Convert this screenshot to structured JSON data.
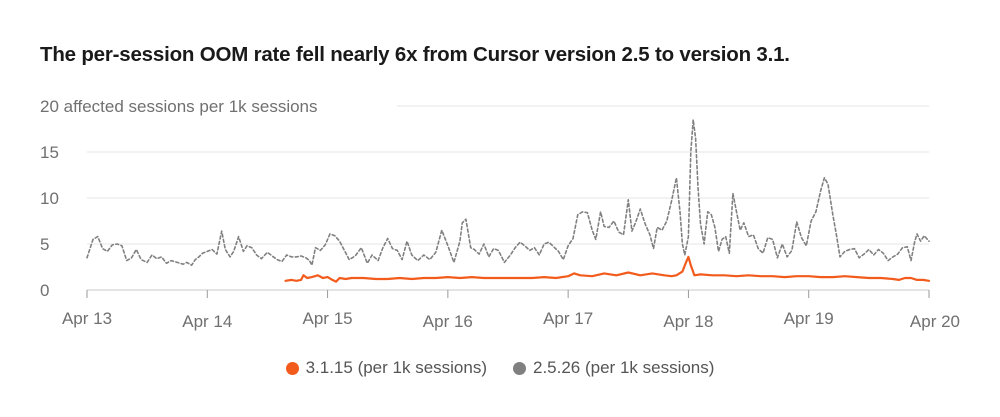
{
  "title": "The per-session OOM rate fell nearly 6x from Cursor version 2.5 to version 3.1.",
  "chart_data": {
    "type": "line",
    "title": "The per-session OOM rate fell nearly 6x from Cursor version 2.5 to version 3.1.",
    "ylabel": "affected sessions per 1k sessions",
    "ylim": [
      0,
      20
    ],
    "xlim": [
      0,
      7
    ],
    "grid": true,
    "legend_position": "bottom",
    "y_ticks": [
      {
        "value": 20,
        "label": "20 affected sessions per 1k sessions"
      },
      {
        "value": 15,
        "label": "15"
      },
      {
        "value": 10,
        "label": "10"
      },
      {
        "value": 5,
        "label": "5"
      },
      {
        "value": 0,
        "label": "0"
      }
    ],
    "x_ticks": [
      {
        "value": 0,
        "label": "Apr 13"
      },
      {
        "value": 1,
        "label": "Apr 14"
      },
      {
        "value": 2,
        "label": "Apr 15"
      },
      {
        "value": 3,
        "label": "Apr 16"
      },
      {
        "value": 4,
        "label": "Apr 17"
      },
      {
        "value": 5,
        "label": "Apr 18"
      },
      {
        "value": 6,
        "label": "Apr 19"
      },
      {
        "value": 7,
        "label": "Apr 20"
      }
    ],
    "series": [
      {
        "name": "2.5.26 (per 1k sessions)",
        "color": "#808080",
        "style": "dashed",
        "points": [
          [
            0.0,
            3.5
          ],
          [
            0.05,
            5.5
          ],
          [
            0.09,
            5.8
          ],
          [
            0.13,
            4.5
          ],
          [
            0.17,
            4.2
          ],
          [
            0.21,
            4.9
          ],
          [
            0.25,
            5.0
          ],
          [
            0.29,
            4.8
          ],
          [
            0.33,
            3.2
          ],
          [
            0.37,
            3.5
          ],
          [
            0.41,
            4.4
          ],
          [
            0.45,
            3.3
          ],
          [
            0.5,
            3.0
          ],
          [
            0.54,
            3.8
          ],
          [
            0.58,
            3.4
          ],
          [
            0.62,
            3.6
          ],
          [
            0.66,
            2.9
          ],
          [
            0.7,
            3.2
          ],
          [
            0.75,
            3.0
          ],
          [
            0.8,
            2.8
          ],
          [
            0.83,
            3.0
          ],
          [
            0.87,
            2.7
          ],
          [
            0.9,
            3.3
          ],
          [
            0.93,
            3.6
          ],
          [
            0.96,
            4.0
          ],
          [
            1.0,
            4.2
          ],
          [
            1.04,
            4.4
          ],
          [
            1.08,
            3.9
          ],
          [
            1.12,
            6.4
          ],
          [
            1.15,
            4.4
          ],
          [
            1.19,
            3.6
          ],
          [
            1.22,
            4.2
          ],
          [
            1.26,
            5.8
          ],
          [
            1.3,
            4.2
          ],
          [
            1.33,
            4.8
          ],
          [
            1.37,
            4.6
          ],
          [
            1.41,
            3.8
          ],
          [
            1.45,
            3.4
          ],
          [
            1.5,
            4.1
          ],
          [
            1.54,
            3.7
          ],
          [
            1.58,
            3.3
          ],
          [
            1.62,
            3.1
          ],
          [
            1.66,
            3.8
          ],
          [
            1.7,
            3.6
          ],
          [
            1.74,
            3.6
          ],
          [
            1.78,
            3.7
          ],
          [
            1.82,
            3.5
          ],
          [
            1.85,
            3.2
          ],
          [
            1.87,
            2.7
          ],
          [
            1.9,
            4.6
          ],
          [
            1.94,
            4.3
          ],
          [
            1.98,
            4.9
          ],
          [
            2.02,
            6.1
          ],
          [
            2.06,
            5.9
          ],
          [
            2.1,
            5.3
          ],
          [
            2.14,
            4.3
          ],
          [
            2.18,
            3.3
          ],
          [
            2.23,
            3.7
          ],
          [
            2.28,
            4.6
          ],
          [
            2.33,
            2.9
          ],
          [
            2.37,
            3.8
          ],
          [
            2.42,
            3.2
          ],
          [
            2.46,
            4.6
          ],
          [
            2.5,
            5.6
          ],
          [
            2.54,
            4.5
          ],
          [
            2.58,
            4.3
          ],
          [
            2.62,
            3.3
          ],
          [
            2.66,
            5.3
          ],
          [
            2.7,
            3.8
          ],
          [
            2.75,
            3.2
          ],
          [
            2.8,
            3.8
          ],
          [
            2.85,
            3.3
          ],
          [
            2.9,
            4.1
          ],
          [
            2.95,
            6.5
          ],
          [
            3.0,
            4.8
          ],
          [
            3.05,
            3.0
          ],
          [
            3.1,
            5.3
          ],
          [
            3.12,
            7.3
          ],
          [
            3.15,
            7.7
          ],
          [
            3.19,
            4.6
          ],
          [
            3.22,
            4.4
          ],
          [
            3.26,
            3.9
          ],
          [
            3.3,
            5.0
          ],
          [
            3.34,
            3.6
          ],
          [
            3.38,
            4.5
          ],
          [
            3.42,
            4.3
          ],
          [
            3.47,
            3.0
          ],
          [
            3.52,
            3.8
          ],
          [
            3.56,
            4.6
          ],
          [
            3.6,
            5.2
          ],
          [
            3.64,
            4.8
          ],
          [
            3.68,
            4.3
          ],
          [
            3.72,
            4.6
          ],
          [
            3.76,
            3.8
          ],
          [
            3.8,
            5.0
          ],
          [
            3.84,
            5.2
          ],
          [
            3.88,
            4.7
          ],
          [
            3.92,
            4.2
          ],
          [
            3.96,
            3.3
          ],
          [
            4.0,
            4.8
          ],
          [
            4.04,
            5.6
          ],
          [
            4.08,
            8.2
          ],
          [
            4.12,
            8.5
          ],
          [
            4.16,
            8.4
          ],
          [
            4.2,
            6.5
          ],
          [
            4.23,
            5.5
          ],
          [
            4.27,
            8.5
          ],
          [
            4.3,
            6.9
          ],
          [
            4.34,
            6.8
          ],
          [
            4.38,
            7.5
          ],
          [
            4.42,
            6.3
          ],
          [
            4.46,
            6.0
          ],
          [
            4.5,
            9.8
          ],
          [
            4.53,
            6.4
          ],
          [
            4.56,
            7.3
          ],
          [
            4.6,
            8.8
          ],
          [
            4.64,
            7.2
          ],
          [
            4.68,
            6.0
          ],
          [
            4.71,
            4.5
          ],
          [
            4.74,
            6.8
          ],
          [
            4.78,
            6.5
          ],
          [
            4.82,
            7.5
          ],
          [
            4.86,
            9.7
          ],
          [
            4.9,
            12.2
          ],
          [
            4.93,
            8.5
          ],
          [
            4.95,
            5.0
          ],
          [
            4.97,
            3.8
          ],
          [
            5.0,
            5.8
          ],
          [
            5.02,
            15.0
          ],
          [
            5.04,
            18.5
          ],
          [
            5.06,
            16.5
          ],
          [
            5.08,
            11.0
          ],
          [
            5.1,
            7.2
          ],
          [
            5.13,
            5.0
          ],
          [
            5.16,
            8.5
          ],
          [
            5.19,
            8.2
          ],
          [
            5.22,
            6.8
          ],
          [
            5.25,
            4.2
          ],
          [
            5.28,
            5.5
          ],
          [
            5.31,
            5.8
          ],
          [
            5.34,
            4.0
          ],
          [
            5.37,
            10.5
          ],
          [
            5.4,
            8.5
          ],
          [
            5.43,
            6.5
          ],
          [
            5.46,
            7.3
          ],
          [
            5.5,
            5.8
          ],
          [
            5.54,
            6.0
          ],
          [
            5.58,
            4.5
          ],
          [
            5.62,
            4.0
          ],
          [
            5.66,
            5.7
          ],
          [
            5.7,
            5.5
          ],
          [
            5.74,
            3.5
          ],
          [
            5.78,
            5.0
          ],
          [
            5.82,
            3.6
          ],
          [
            5.86,
            4.3
          ],
          [
            5.9,
            7.4
          ],
          [
            5.94,
            5.7
          ],
          [
            5.98,
            4.8
          ],
          [
            6.02,
            7.5
          ],
          [
            6.06,
            8.5
          ],
          [
            6.1,
            10.8
          ],
          [
            6.13,
            12.2
          ],
          [
            6.16,
            11.5
          ],
          [
            6.2,
            8.2
          ],
          [
            6.23,
            6.0
          ],
          [
            6.26,
            3.6
          ],
          [
            6.3,
            4.2
          ],
          [
            6.34,
            4.4
          ],
          [
            6.38,
            4.5
          ],
          [
            6.42,
            3.5
          ],
          [
            6.46,
            3.9
          ],
          [
            6.5,
            4.4
          ],
          [
            6.54,
            3.8
          ],
          [
            6.58,
            4.4
          ],
          [
            6.62,
            4.0
          ],
          [
            6.66,
            3.2
          ],
          [
            6.7,
            3.6
          ],
          [
            6.74,
            3.9
          ],
          [
            6.78,
            4.6
          ],
          [
            6.82,
            4.7
          ],
          [
            6.85,
            3.2
          ],
          [
            6.88,
            5.2
          ],
          [
            6.9,
            6.1
          ],
          [
            6.93,
            5.3
          ],
          [
            6.96,
            5.9
          ],
          [
            6.98,
            5.6
          ],
          [
            7.0,
            5.3
          ]
        ]
      },
      {
        "name": "3.1.15 (per 1k sessions)",
        "color": "#f25b1c",
        "style": "solid",
        "points": [
          [
            1.65,
            1.0
          ],
          [
            1.7,
            1.1
          ],
          [
            1.74,
            1.0
          ],
          [
            1.78,
            1.1
          ],
          [
            1.8,
            1.6
          ],
          [
            1.83,
            1.3
          ],
          [
            1.87,
            1.4
          ],
          [
            1.92,
            1.6
          ],
          [
            1.96,
            1.3
          ],
          [
            2.0,
            1.4
          ],
          [
            2.04,
            1.1
          ],
          [
            2.07,
            0.9
          ],
          [
            2.1,
            1.3
          ],
          [
            2.15,
            1.2
          ],
          [
            2.2,
            1.3
          ],
          [
            2.3,
            1.3
          ],
          [
            2.4,
            1.2
          ],
          [
            2.5,
            1.2
          ],
          [
            2.6,
            1.3
          ],
          [
            2.7,
            1.2
          ],
          [
            2.8,
            1.3
          ],
          [
            2.9,
            1.3
          ],
          [
            3.0,
            1.4
          ],
          [
            3.1,
            1.3
          ],
          [
            3.2,
            1.4
          ],
          [
            3.3,
            1.3
          ],
          [
            3.4,
            1.3
          ],
          [
            3.5,
            1.3
          ],
          [
            3.6,
            1.3
          ],
          [
            3.7,
            1.3
          ],
          [
            3.8,
            1.4
          ],
          [
            3.9,
            1.3
          ],
          [
            4.0,
            1.5
          ],
          [
            4.05,
            1.8
          ],
          [
            4.1,
            1.6
          ],
          [
            4.2,
            1.5
          ],
          [
            4.3,
            1.8
          ],
          [
            4.4,
            1.6
          ],
          [
            4.5,
            1.9
          ],
          [
            4.6,
            1.6
          ],
          [
            4.7,
            1.8
          ],
          [
            4.8,
            1.6
          ],
          [
            4.86,
            1.5
          ],
          [
            4.9,
            1.6
          ],
          [
            4.95,
            2.0
          ],
          [
            4.98,
            3.0
          ],
          [
            5.0,
            3.6
          ],
          [
            5.02,
            2.7
          ],
          [
            5.05,
            1.6
          ],
          [
            5.1,
            1.7
          ],
          [
            5.2,
            1.6
          ],
          [
            5.3,
            1.6
          ],
          [
            5.4,
            1.5
          ],
          [
            5.5,
            1.6
          ],
          [
            5.6,
            1.5
          ],
          [
            5.7,
            1.5
          ],
          [
            5.8,
            1.4
          ],
          [
            5.9,
            1.5
          ],
          [
            6.0,
            1.5
          ],
          [
            6.1,
            1.4
          ],
          [
            6.2,
            1.4
          ],
          [
            6.3,
            1.5
          ],
          [
            6.4,
            1.4
          ],
          [
            6.5,
            1.3
          ],
          [
            6.6,
            1.3
          ],
          [
            6.7,
            1.2
          ],
          [
            6.75,
            1.1
          ],
          [
            6.8,
            1.3
          ],
          [
            6.85,
            1.3
          ],
          [
            6.9,
            1.1
          ],
          [
            6.95,
            1.1
          ],
          [
            7.0,
            1.0
          ]
        ]
      }
    ]
  },
  "legend": [
    {
      "label": "3.1.15 (per 1k sessions)",
      "color": "#f25b1c"
    },
    {
      "label": "2.5.26 (per 1k sessions)",
      "color": "#808080"
    }
  ]
}
